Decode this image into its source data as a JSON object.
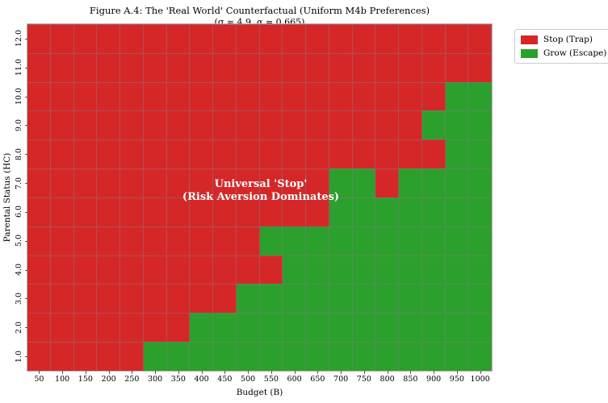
{
  "title": "Figure A.4: The 'Real World' Counterfactual (Uniform M4b Preferences)",
  "subtitle": "(σ ≈ 4.9, α = 0.665)",
  "annotation": {
    "line1": "Universal 'Stop'",
    "line2": "(Risk Aversion Dominates)"
  },
  "axes": {
    "xlabel": "Budget (B)",
    "ylabel": "Parental Status (HC)",
    "x_ticks": [
      "50",
      "100",
      "150",
      "200",
      "250",
      "300",
      "350",
      "400",
      "450",
      "500",
      "550",
      "600",
      "650",
      "700",
      "750",
      "800",
      "850",
      "900",
      "950",
      "1000"
    ],
    "y_ticks_top_to_bottom": [
      "12.0",
      "11.0",
      "10.0",
      "9.0",
      "8.0",
      "7.0",
      "6.0",
      "5.0",
      "4.0",
      "3.0",
      "2.0",
      "1.0"
    ]
  },
  "legend": {
    "items": [
      {
        "key": "R",
        "label": "Stop (Trap)",
        "color": "#d62728"
      },
      {
        "key": "G",
        "label": "Grow (Escape)",
        "color": "#2ca02c"
      }
    ]
  },
  "chart_data": {
    "type": "heatmap",
    "title": "Figure A.4: The 'Real World' Counterfactual (Uniform M4b Preferences)",
    "subtitle": "(σ ≈ 4.9, α = 0.665)",
    "xlabel": "Budget (B)",
    "ylabel": "Parental Status (HC)",
    "x": [
      50,
      100,
      150,
      200,
      250,
      300,
      350,
      400,
      450,
      500,
      550,
      600,
      650,
      700,
      750,
      800,
      850,
      900,
      950,
      1000
    ],
    "y_top_to_bottom": [
      12,
      11,
      10,
      9,
      8,
      7,
      6,
      5,
      4,
      3,
      2,
      1
    ],
    "grid": true,
    "legend_position": "upper-right-outside",
    "cell_colors": {
      "R": "#d62728",
      "G": "#2ca02c"
    },
    "cell_meaning": {
      "R": "Stop (Trap)",
      "G": "Grow (Escape)"
    },
    "rows_top_to_bottom": [
      "RRRRRRRRRRRRRRRRRRRR",
      "RRRRRRRRRRRRRRRRRRRR",
      "RRRRRRRRRRRRRRRRRRGG",
      "RRRRRRRRRRRRRRRRRGGG",
      "RRRRRRRRRRRRRRRRRRGG",
      "RRRRRRRRRRRRRGGRGGGG",
      "RRRRRRRRRRRRRGGGGGGG",
      "RRRRRRRRRRGGGGGGGGGG",
      "RRRRRRRRRRRGGGGGGGGG",
      "RRRRRRRRRGGGGGGGGGGG",
      "RRRRRRRGGGGGGGGGGGGG",
      "RRRRRGGGGGGGGGGGGGGG"
    ]
  }
}
